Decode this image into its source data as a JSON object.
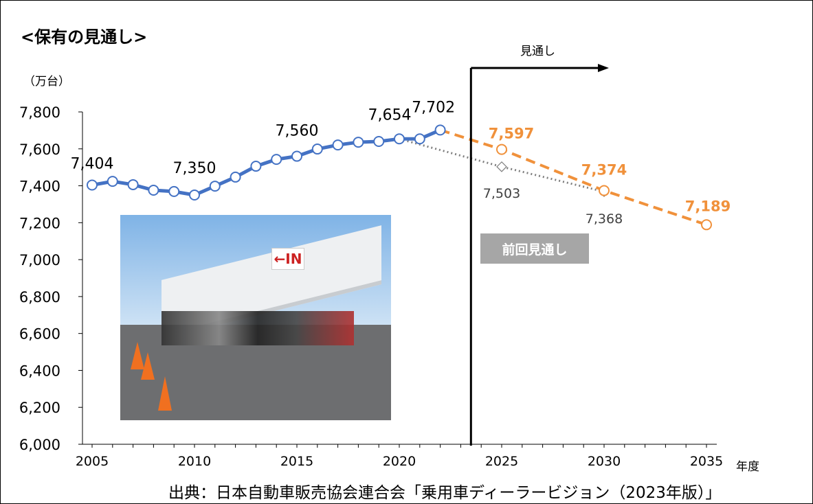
{
  "title": "<保有の見通し>",
  "unit_label": "（万台）",
  "x_unit_label": "年度",
  "forecast_label": "見通し",
  "previous_forecast_label": "前回見通し",
  "source": "出典：日本自動車販売協会連合会「乗用車ディーラービジョン（2023年版）」",
  "photo": {
    "sign_text": "←IN"
  },
  "colors": {
    "actual": "#4472c4",
    "forecast": "#f0913b",
    "previous": "#808080"
  },
  "chart_data": {
    "type": "line",
    "title": "<保有の見通し>",
    "ylabel": "（万台）",
    "xlabel": "年度",
    "xlim": [
      2005,
      2035
    ],
    "ylim": [
      6000,
      7800
    ],
    "x_ticks": [
      "2005",
      "2010",
      "2015",
      "2020",
      "2025",
      "2030",
      "2035"
    ],
    "y_ticks": [
      "6,000",
      "6,200",
      "6,400",
      "6,600",
      "6,800",
      "7,000",
      "7,200",
      "7,400",
      "7,600",
      "7,800"
    ],
    "y_tick_values": [
      6000,
      6200,
      6400,
      6600,
      6800,
      7000,
      7200,
      7400,
      7600,
      7800
    ],
    "series": [
      {
        "name": "actual",
        "x": [
          2005,
          2006,
          2007,
          2008,
          2009,
          2010,
          2011,
          2012,
          2013,
          2014,
          2015,
          2016,
          2017,
          2018,
          2019,
          2020,
          2021,
          2022
        ],
        "values": [
          7404,
          7424,
          7406,
          7376,
          7369,
          7350,
          7398,
          7447,
          7506,
          7543,
          7560,
          7599,
          7621,
          7636,
          7640,
          7654,
          7654,
          7702
        ]
      },
      {
        "name": "forecast",
        "x": [
          2022,
          2025,
          2030,
          2035
        ],
        "values": [
          7702,
          7597,
          7374,
          7189
        ]
      },
      {
        "name": "previous-forecast",
        "x": [
          2020,
          2025,
          2030
        ],
        "values": [
          7654,
          7503,
          7368
        ]
      }
    ],
    "data_labels": [
      {
        "series": "actual",
        "x": 2005,
        "text": "7,404"
      },
      {
        "series": "actual",
        "x": 2010,
        "text": "7,350"
      },
      {
        "series": "actual",
        "x": 2015,
        "text": "7,560"
      },
      {
        "series": "actual",
        "x": 2020,
        "text": "7,654"
      },
      {
        "series": "actual",
        "x": 2022,
        "text": "7,702"
      },
      {
        "series": "forecast",
        "x": 2025,
        "text": "7,597"
      },
      {
        "series": "forecast",
        "x": 2030,
        "text": "7,374"
      },
      {
        "series": "forecast",
        "x": 2035,
        "text": "7,189"
      },
      {
        "series": "previous-forecast",
        "x": 2025,
        "text": "7,503"
      },
      {
        "series": "previous-forecast",
        "x": 2030,
        "text": "7,368"
      }
    ],
    "forecast_start_year": 2023.5
  }
}
